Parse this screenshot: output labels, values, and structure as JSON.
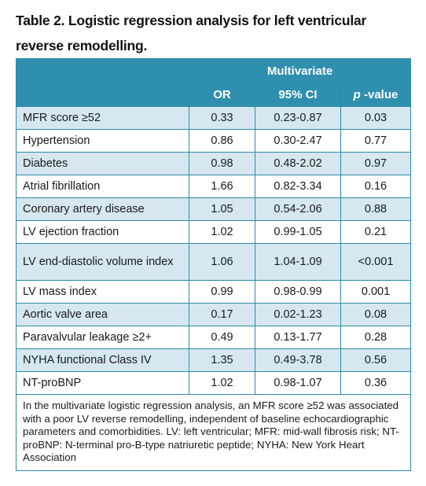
{
  "title": "Table 2. Logistic regression analysis for left ventricular reverse remodelling.",
  "header": {
    "group": "Multivariate",
    "columns": [
      "OR",
      "95% CI",
      "p-value"
    ]
  },
  "rows": [
    {
      "label": "MFR score ≥52",
      "or": "0.33",
      "ci": "0.23-0.87",
      "p": "0.03"
    },
    {
      "label": "Hypertension",
      "or": "0.86",
      "ci": "0.30-2.47",
      "p": "0.77"
    },
    {
      "label": "Diabetes",
      "or": "0.98",
      "ci": "0.48-2.02",
      "p": "0.97"
    },
    {
      "label": "Atrial fibrillation",
      "or": "1.66",
      "ci": "0.82-3.34",
      "p": "0.16"
    },
    {
      "label": "Coronary artery disease",
      "or": "1.05",
      "ci": "0.54-2.06",
      "p": "0.88"
    },
    {
      "label": "LV ejection fraction",
      "or": "1.02",
      "ci": "0.99-1.05",
      "p": "0.21"
    },
    {
      "label": "LV end-diastolic volume index",
      "or": "1.06",
      "ci": "1.04-1.09",
      "p": "<0.001"
    },
    {
      "label": "LV mass index",
      "or": "0.99",
      "ci": "0.98-0.99",
      "p": "0.001"
    },
    {
      "label": "Aortic valve area",
      "or": "0.17",
      "ci": "0.02-1.23",
      "p": "0.08"
    },
    {
      "label": "Paravalvular leakage ≥2+",
      "or": "0.49",
      "ci": "0.13-1.77",
      "p": "0.28"
    },
    {
      "label": "NYHA functional Class IV",
      "or": "1.35",
      "ci": "0.49-3.78",
      "p": "0.56"
    },
    {
      "label": "NT-proBNP",
      "or": "1.02",
      "ci": "0.98-1.07",
      "p": "0.36"
    }
  ],
  "footnote": "In the multivariate logistic regression analysis, an MFR score ≥52 was associated with a poor LV reverse remodelling, independent of baseline echocardiographic parameters and comorbidities. LV: left ventricular; MFR: mid-wall fibrosis risk; NT-proBNP: N-terminal pro-B-type natriuretic peptide; NYHA: New York Heart Association",
  "colors": {
    "header_bg": "#2f8fae",
    "stripe_bg": "#d6e7ef",
    "border": "#2d8aa8"
  }
}
